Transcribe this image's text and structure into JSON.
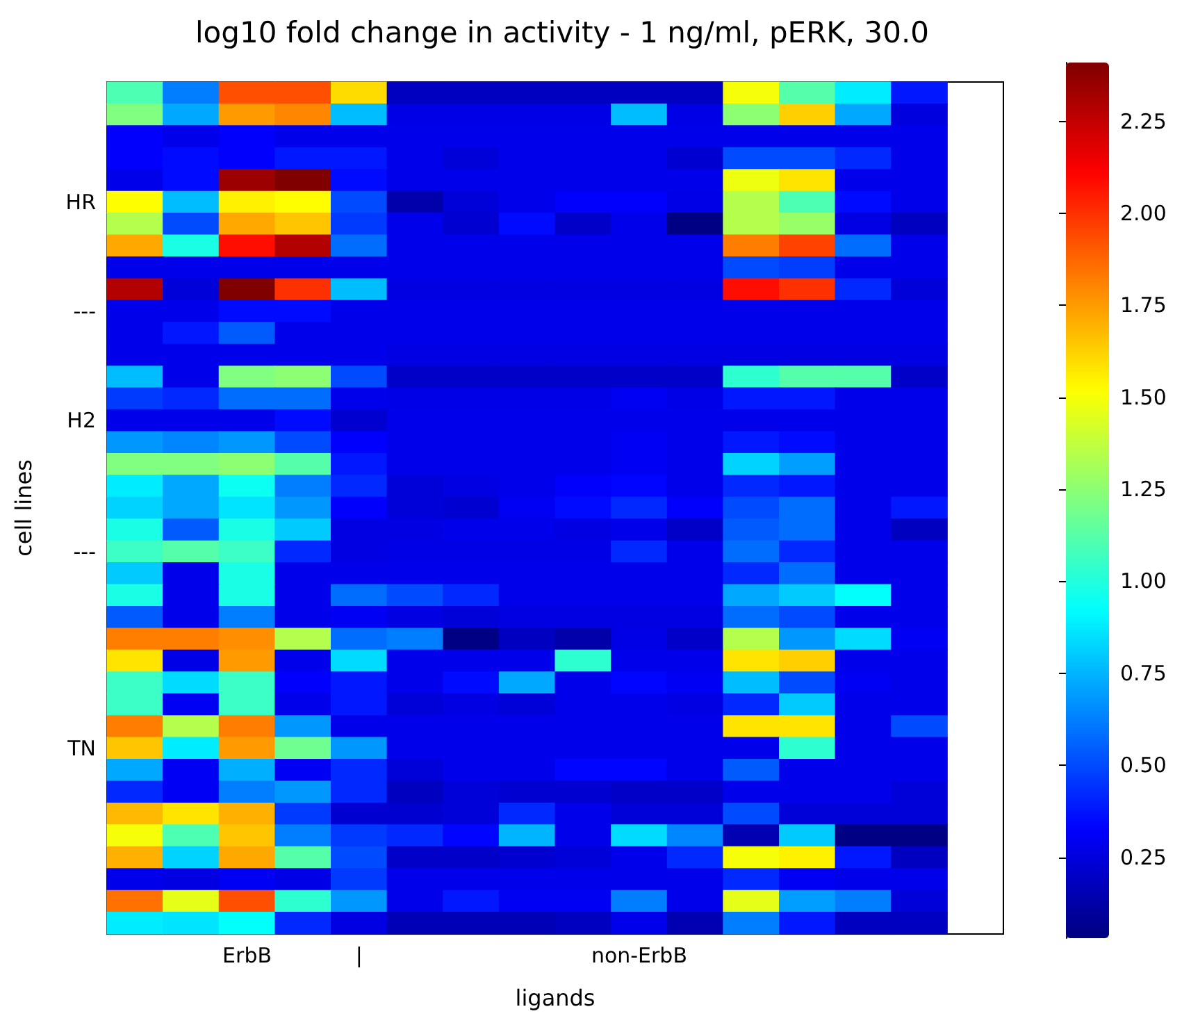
{
  "chart_data": {
    "type": "heatmap",
    "title": "log10 fold change in activity - 1 ng/ml, pERK, 30.0",
    "xlabel": "ligands",
    "ylabel": "cell lines",
    "categories": [
      null,
      null,
      "ErbB",
      null,
      "|",
      null,
      null,
      null,
      null,
      "non-ErbB",
      null,
      null,
      null,
      null,
      null,
      null
    ],
    "y_categories": [
      null,
      null,
      null,
      null,
      null,
      "HR",
      null,
      null,
      null,
      null,
      "---",
      null,
      null,
      null,
      null,
      "H2",
      null,
      null,
      null,
      null,
      null,
      "---",
      null,
      null,
      null,
      null,
      null,
      null,
      null,
      null,
      "TN",
      null,
      null,
      null,
      null,
      null,
      null,
      null,
      null
    ],
    "clim": [
      0.03,
      2.41
    ],
    "cticks": [
      {
        "value": 0.25,
        "label": "0.25"
      },
      {
        "value": 0.5,
        "label": "0.50"
      },
      {
        "value": 0.75,
        "label": "0.75"
      },
      {
        "value": 1,
        "label": "1.00"
      },
      {
        "value": 1.25,
        "label": "1.25"
      },
      {
        "value": 1.5,
        "label": "1.50"
      },
      {
        "value": 1.75,
        "label": "1.75"
      },
      {
        "value": 2,
        "label": "2.00"
      },
      {
        "value": 2.25,
        "label": "2.25"
      }
    ],
    "cells": [
      [
        1.1,
        0.62,
        1.93,
        1.93,
        1.6,
        0.18,
        0.18,
        0.18,
        0.18,
        0.18,
        0.18,
        1.5,
        1.12,
        0.88,
        0.38,
        null
      ],
      [
        1.22,
        0.72,
        1.75,
        1.8,
        0.77,
        0.27,
        0.27,
        0.27,
        0.27,
        0.77,
        0.27,
        1.25,
        1.63,
        0.72,
        0.25,
        null
      ],
      [
        0.32,
        0.28,
        0.32,
        0.28,
        0.28,
        0.28,
        0.28,
        0.28,
        0.28,
        0.28,
        0.28,
        0.28,
        0.28,
        0.28,
        0.28,
        null
      ],
      [
        0.32,
        0.35,
        0.32,
        0.38,
        0.38,
        0.28,
        0.24,
        0.28,
        0.28,
        0.28,
        0.22,
        0.5,
        0.5,
        0.42,
        0.28,
        null
      ],
      [
        0.28,
        0.35,
        2.34,
        2.41,
        0.35,
        0.28,
        0.28,
        0.28,
        0.28,
        0.28,
        0.28,
        1.48,
        1.58,
        0.28,
        0.28,
        null
      ],
      [
        1.52,
        0.77,
        1.55,
        1.52,
        0.5,
        0.13,
        0.24,
        0.28,
        0.32,
        0.32,
        0.27,
        1.34,
        1.1,
        0.35,
        0.28,
        null
      ],
      [
        1.34,
        0.5,
        1.72,
        1.65,
        0.46,
        0.28,
        0.22,
        0.35,
        0.2,
        0.28,
        0.04,
        1.34,
        1.28,
        0.26,
        0.18,
        null
      ],
      [
        1.72,
        0.98,
        2.08,
        2.29,
        0.58,
        0.28,
        0.28,
        0.28,
        0.28,
        0.28,
        0.28,
        1.82,
        1.96,
        0.58,
        0.28,
        null
      ],
      [
        0.28,
        0.28,
        0.28,
        0.28,
        0.28,
        0.28,
        0.28,
        0.28,
        0.28,
        0.28,
        0.28,
        0.5,
        0.47,
        0.28,
        0.28,
        null
      ],
      [
        2.29,
        0.24,
        2.41,
        2.0,
        0.77,
        0.26,
        0.26,
        0.26,
        0.26,
        0.26,
        0.26,
        2.08,
        2.0,
        0.42,
        0.24,
        null
      ],
      [
        0.28,
        0.28,
        0.35,
        0.35,
        0.28,
        0.28,
        0.28,
        0.28,
        0.28,
        0.28,
        0.28,
        0.28,
        0.28,
        0.28,
        0.28,
        null
      ],
      [
        0.28,
        0.38,
        0.54,
        0.28,
        0.28,
        0.28,
        0.28,
        0.28,
        0.28,
        0.28,
        0.28,
        0.28,
        0.28,
        0.28,
        0.28,
        null
      ],
      [
        0.28,
        0.28,
        0.28,
        0.28,
        0.28,
        0.26,
        0.26,
        0.26,
        0.26,
        0.26,
        0.26,
        0.26,
        0.26,
        0.26,
        0.26,
        null
      ],
      [
        0.77,
        0.28,
        1.22,
        1.25,
        0.5,
        0.2,
        0.2,
        0.2,
        0.2,
        0.2,
        0.2,
        1.03,
        1.12,
        1.12,
        0.2,
        null
      ],
      [
        0.46,
        0.42,
        0.58,
        0.58,
        0.28,
        0.27,
        0.27,
        0.27,
        0.27,
        0.3,
        0.27,
        0.38,
        0.38,
        0.28,
        0.28,
        null
      ],
      [
        0.28,
        0.28,
        0.28,
        0.35,
        0.22,
        0.28,
        0.28,
        0.28,
        0.28,
        0.28,
        0.28,
        0.28,
        0.28,
        0.28,
        0.28,
        null
      ],
      [
        0.68,
        0.64,
        0.68,
        0.5,
        0.32,
        0.28,
        0.28,
        0.28,
        0.28,
        0.3,
        0.28,
        0.38,
        0.35,
        0.28,
        0.28,
        null
      ],
      [
        1.22,
        1.22,
        1.25,
        1.12,
        0.38,
        0.28,
        0.28,
        0.28,
        0.28,
        0.3,
        0.28,
        0.82,
        0.7,
        0.28,
        0.28,
        null
      ],
      [
        0.88,
        0.72,
        0.95,
        0.62,
        0.42,
        0.24,
        0.26,
        0.28,
        0.32,
        0.34,
        0.28,
        0.42,
        0.38,
        0.28,
        0.28,
        null
      ],
      [
        0.82,
        0.72,
        0.86,
        0.68,
        0.32,
        0.24,
        0.22,
        0.3,
        0.35,
        0.42,
        0.32,
        0.5,
        0.58,
        0.28,
        0.38,
        null
      ],
      [
        0.98,
        0.54,
        0.98,
        0.8,
        0.26,
        0.26,
        0.28,
        0.28,
        0.26,
        0.28,
        0.2,
        0.54,
        0.58,
        0.28,
        0.18,
        null
      ],
      [
        1.06,
        1.12,
        1.06,
        0.42,
        0.26,
        0.27,
        0.27,
        0.27,
        0.27,
        0.42,
        0.28,
        0.58,
        0.42,
        0.28,
        0.28,
        null
      ],
      [
        0.8,
        0.28,
        0.98,
        0.28,
        0.28,
        0.28,
        0.28,
        0.28,
        0.28,
        0.28,
        0.28,
        0.42,
        0.58,
        0.28,
        0.28,
        null
      ],
      [
        0.98,
        0.28,
        0.98,
        0.28,
        0.58,
        0.5,
        0.42,
        0.28,
        0.28,
        0.28,
        0.28,
        0.72,
        0.8,
        0.93,
        0.28,
        null
      ],
      [
        0.54,
        0.28,
        0.62,
        0.28,
        0.3,
        0.26,
        0.24,
        0.26,
        0.26,
        0.26,
        0.26,
        0.58,
        0.5,
        0.28,
        0.28,
        null
      ],
      [
        1.82,
        1.82,
        1.78,
        1.34,
        0.58,
        0.62,
        0.04,
        0.18,
        0.13,
        0.27,
        0.2,
        1.34,
        0.68,
        0.84,
        0.3,
        null
      ],
      [
        1.58,
        0.27,
        1.75,
        0.28,
        0.84,
        0.28,
        0.28,
        0.28,
        1.03,
        0.28,
        0.28,
        1.58,
        1.63,
        0.28,
        0.28,
        null
      ],
      [
        1.06,
        0.84,
        1.06,
        0.32,
        0.38,
        0.28,
        0.35,
        0.72,
        0.28,
        0.34,
        0.3,
        0.77,
        0.5,
        0.3,
        0.28,
        null
      ],
      [
        1.06,
        0.3,
        1.06,
        0.28,
        0.38,
        0.24,
        0.26,
        0.24,
        0.28,
        0.28,
        0.26,
        0.42,
        0.8,
        0.28,
        0.28,
        null
      ],
      [
        1.82,
        1.34,
        1.82,
        0.68,
        0.28,
        0.28,
        0.28,
        0.28,
        0.28,
        0.28,
        0.28,
        1.58,
        1.58,
        0.28,
        0.5,
        null
      ],
      [
        1.65,
        0.88,
        1.75,
        1.18,
        0.68,
        0.28,
        0.28,
        0.28,
        0.28,
        0.28,
        0.28,
        0.28,
        1.03,
        0.28,
        0.28,
        null
      ],
      [
        0.72,
        0.3,
        0.74,
        0.3,
        0.42,
        0.24,
        0.28,
        0.28,
        0.34,
        0.34,
        0.28,
        0.54,
        0.28,
        0.28,
        0.28,
        null
      ],
      [
        0.42,
        0.3,
        0.62,
        0.68,
        0.42,
        0.18,
        0.24,
        0.22,
        0.22,
        0.2,
        0.2,
        0.28,
        0.28,
        0.28,
        0.24,
        null
      ],
      [
        1.68,
        1.58,
        1.7,
        0.46,
        0.22,
        0.22,
        0.24,
        0.42,
        0.28,
        0.24,
        0.24,
        0.5,
        0.24,
        0.24,
        0.24,
        null
      ],
      [
        1.5,
        1.1,
        1.65,
        0.62,
        0.46,
        0.42,
        0.34,
        0.75,
        0.28,
        0.84,
        0.64,
        0.15,
        0.8,
        0.04,
        0.04,
        null
      ],
      [
        1.7,
        0.82,
        1.72,
        1.12,
        0.5,
        0.2,
        0.2,
        0.22,
        0.24,
        0.28,
        0.42,
        1.5,
        1.55,
        0.38,
        0.18,
        null
      ],
      [
        0.28,
        0.26,
        0.3,
        0.27,
        0.46,
        0.28,
        0.28,
        0.28,
        0.28,
        0.28,
        0.28,
        0.42,
        0.3,
        0.28,
        0.28,
        null
      ],
      [
        1.85,
        1.46,
        1.93,
        1.03,
        0.68,
        0.28,
        0.38,
        0.3,
        0.3,
        0.62,
        0.28,
        1.46,
        0.7,
        0.62,
        0.24,
        null
      ],
      [
        0.88,
        0.86,
        0.93,
        0.42,
        0.26,
        0.16,
        0.16,
        0.16,
        0.18,
        0.28,
        0.15,
        0.62,
        0.38,
        0.18,
        0.18,
        null
      ]
    ]
  }
}
